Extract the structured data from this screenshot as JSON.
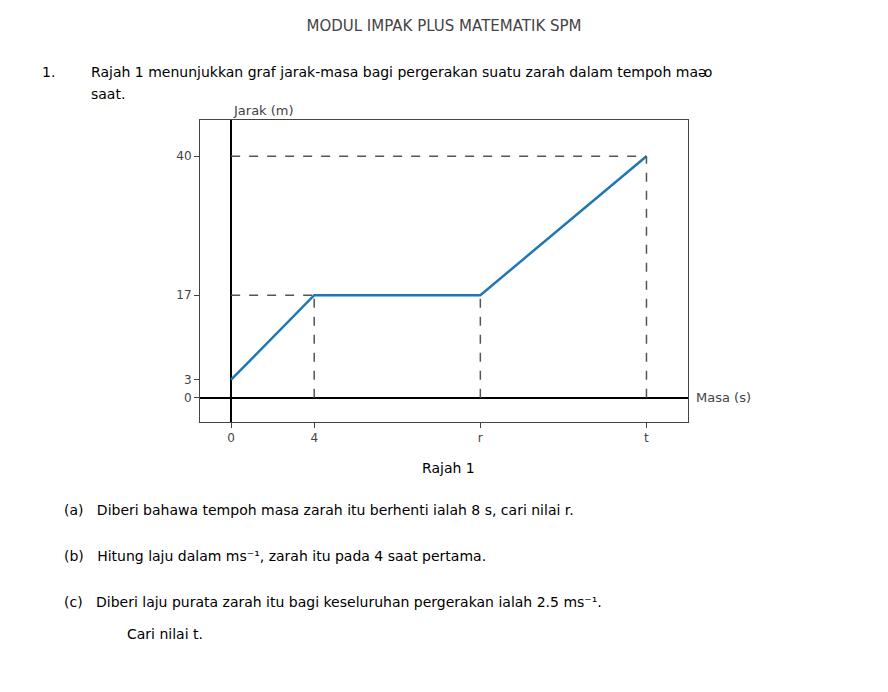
{
  "chart_data": {
    "type": "line",
    "title": "MODUL IMPAK PLUS MATEMATIK SPM",
    "x_label": "Masa (s)",
    "y_label": "Jarak (m)",
    "x": [
      0,
      4,
      12,
      20
    ],
    "values": [
      3,
      17,
      17,
      40
    ],
    "xlim": [
      -1.5,
      22
    ],
    "ylim": [
      -4,
      46
    ],
    "xticks": [
      0,
      4,
      {
        "value": 12,
        "label": "r"
      },
      {
        "value": 20,
        "label": "t"
      }
    ],
    "yticks": [
      0,
      3,
      17,
      40
    ],
    "grid": false,
    "annotations": [
      "1.",
      "Rajah 1 menunjukkan graf jarak-masa bagi pergerakan suatu zarah dalam tempoh maᴔ",
      "saat.",
      "Rajah 1",
      "(a)   Diberi bahawa tempoh masa zarah itu berhenti ialah 8 s, cari nilai r.",
      "(b)   Hitung laju dalam ms⁻¹, zarah itu pada 4 saat pertama.",
      "(c)   Diberi laju purata zarah itu bagi keseluruhan pergerakan ialah 2.5 ms⁻¹.",
      "Cari nilai t."
    ]
  }
}
